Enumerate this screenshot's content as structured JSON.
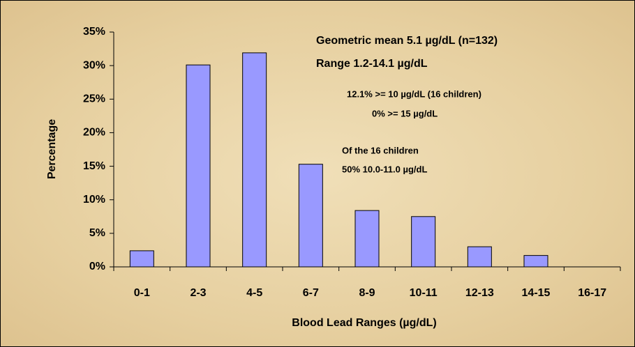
{
  "chart_data": {
    "type": "bar",
    "x_label": "Blood Lead Ranges (µg/dL)",
    "y_label": "Percentage",
    "categories": [
      "0-1",
      "2-3",
      "4-5",
      "6-7",
      "8-9",
      "10-11",
      "12-13",
      "14-15",
      "16-17"
    ],
    "values": [
      2.4,
      30.1,
      31.9,
      15.3,
      8.4,
      7.5,
      3.0,
      1.7,
      0
    ],
    "color": "#9999ff",
    "ylim": [
      0,
      35
    ],
    "yticks": [
      {
        "value": 0,
        "label": "0%"
      },
      {
        "value": 5,
        "label": "5%"
      },
      {
        "value": 10,
        "label": "10%"
      },
      {
        "value": 15,
        "label": "15%"
      },
      {
        "value": 20,
        "label": "20%"
      },
      {
        "value": 25,
        "label": "25%"
      },
      {
        "value": 30,
        "label": "30%"
      },
      {
        "value": 35,
        "label": "35%"
      }
    ],
    "annotations": [
      "Geometric mean 5.1 µg/dL (n=132)",
      "Range 1.2-14.1 µg/dL",
      "12.1% >= 10 µg/dL (16 children)",
      "0% >= 15 µg/dL",
      "Of the 16 children",
      "50% 10.0-11.0 µg/dL"
    ]
  }
}
